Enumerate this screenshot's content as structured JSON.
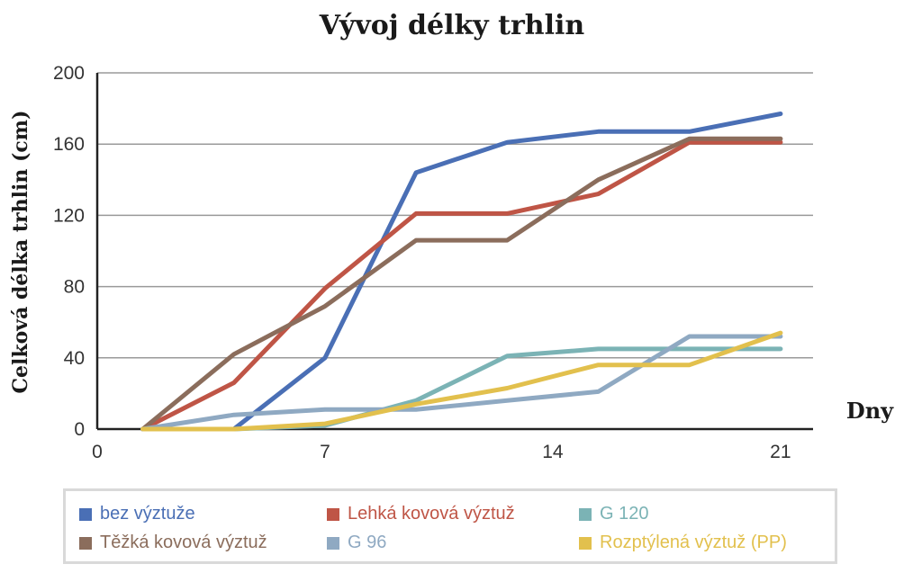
{
  "chart_data": {
    "type": "line",
    "title": "Vývoj délky trhlin",
    "xlabel": "Dny",
    "ylabel": "Celková délka trhlin (cm)",
    "xlim": [
      0,
      22
    ],
    "ylim": [
      0,
      200
    ],
    "xticks": [
      0,
      7,
      14,
      21
    ],
    "yticks": [
      0,
      40,
      80,
      120,
      160,
      200
    ],
    "grid": true,
    "legend": "bottom",
    "series": [
      {
        "name": "bez výztuže",
        "color": "#4a6fb5",
        "x": [
          1.4,
          4.2,
          7.0,
          9.8,
          12.6,
          15.4,
          18.2,
          21.0
        ],
        "y": [
          0,
          0,
          40,
          144,
          161,
          167,
          167,
          177
        ]
      },
      {
        "name": "Lehká kovová výztuž",
        "color": "#bf5546",
        "x": [
          1.4,
          4.2,
          7.0,
          9.8,
          12.6,
          15.4,
          18.2,
          21.0
        ],
        "y": [
          0,
          26,
          79,
          121,
          121,
          132,
          161,
          161
        ]
      },
      {
        "name": "G 120",
        "color": "#7bb3b5",
        "x": [
          1.4,
          4.2,
          7.0,
          9.8,
          12.6,
          15.4,
          18.2,
          21.0
        ],
        "y": [
          0,
          0,
          2,
          16,
          41,
          45,
          45,
          45
        ]
      },
      {
        "name": "Těžká kovová výztuž",
        "color": "#8b6d5c",
        "x": [
          1.4,
          4.2,
          7.0,
          9.8,
          12.6,
          15.4,
          18.2,
          21.0
        ],
        "y": [
          0,
          42,
          69,
          106,
          106,
          140,
          163,
          163
        ]
      },
      {
        "name": "G 96",
        "color": "#8fa9c2",
        "x": [
          1.4,
          4.2,
          7.0,
          9.8,
          12.6,
          15.4,
          18.2,
          21.0
        ],
        "y": [
          0,
          8,
          11,
          11,
          16,
          21,
          52,
          52
        ]
      },
      {
        "name": "Rozptýlená výztuž (PP)",
        "color": "#e2c04d",
        "x": [
          1.4,
          4.2,
          7.0,
          9.8,
          12.6,
          15.4,
          18.2,
          21.0
        ],
        "y": [
          0,
          0,
          3,
          14,
          23,
          36,
          36,
          54
        ]
      }
    ]
  }
}
